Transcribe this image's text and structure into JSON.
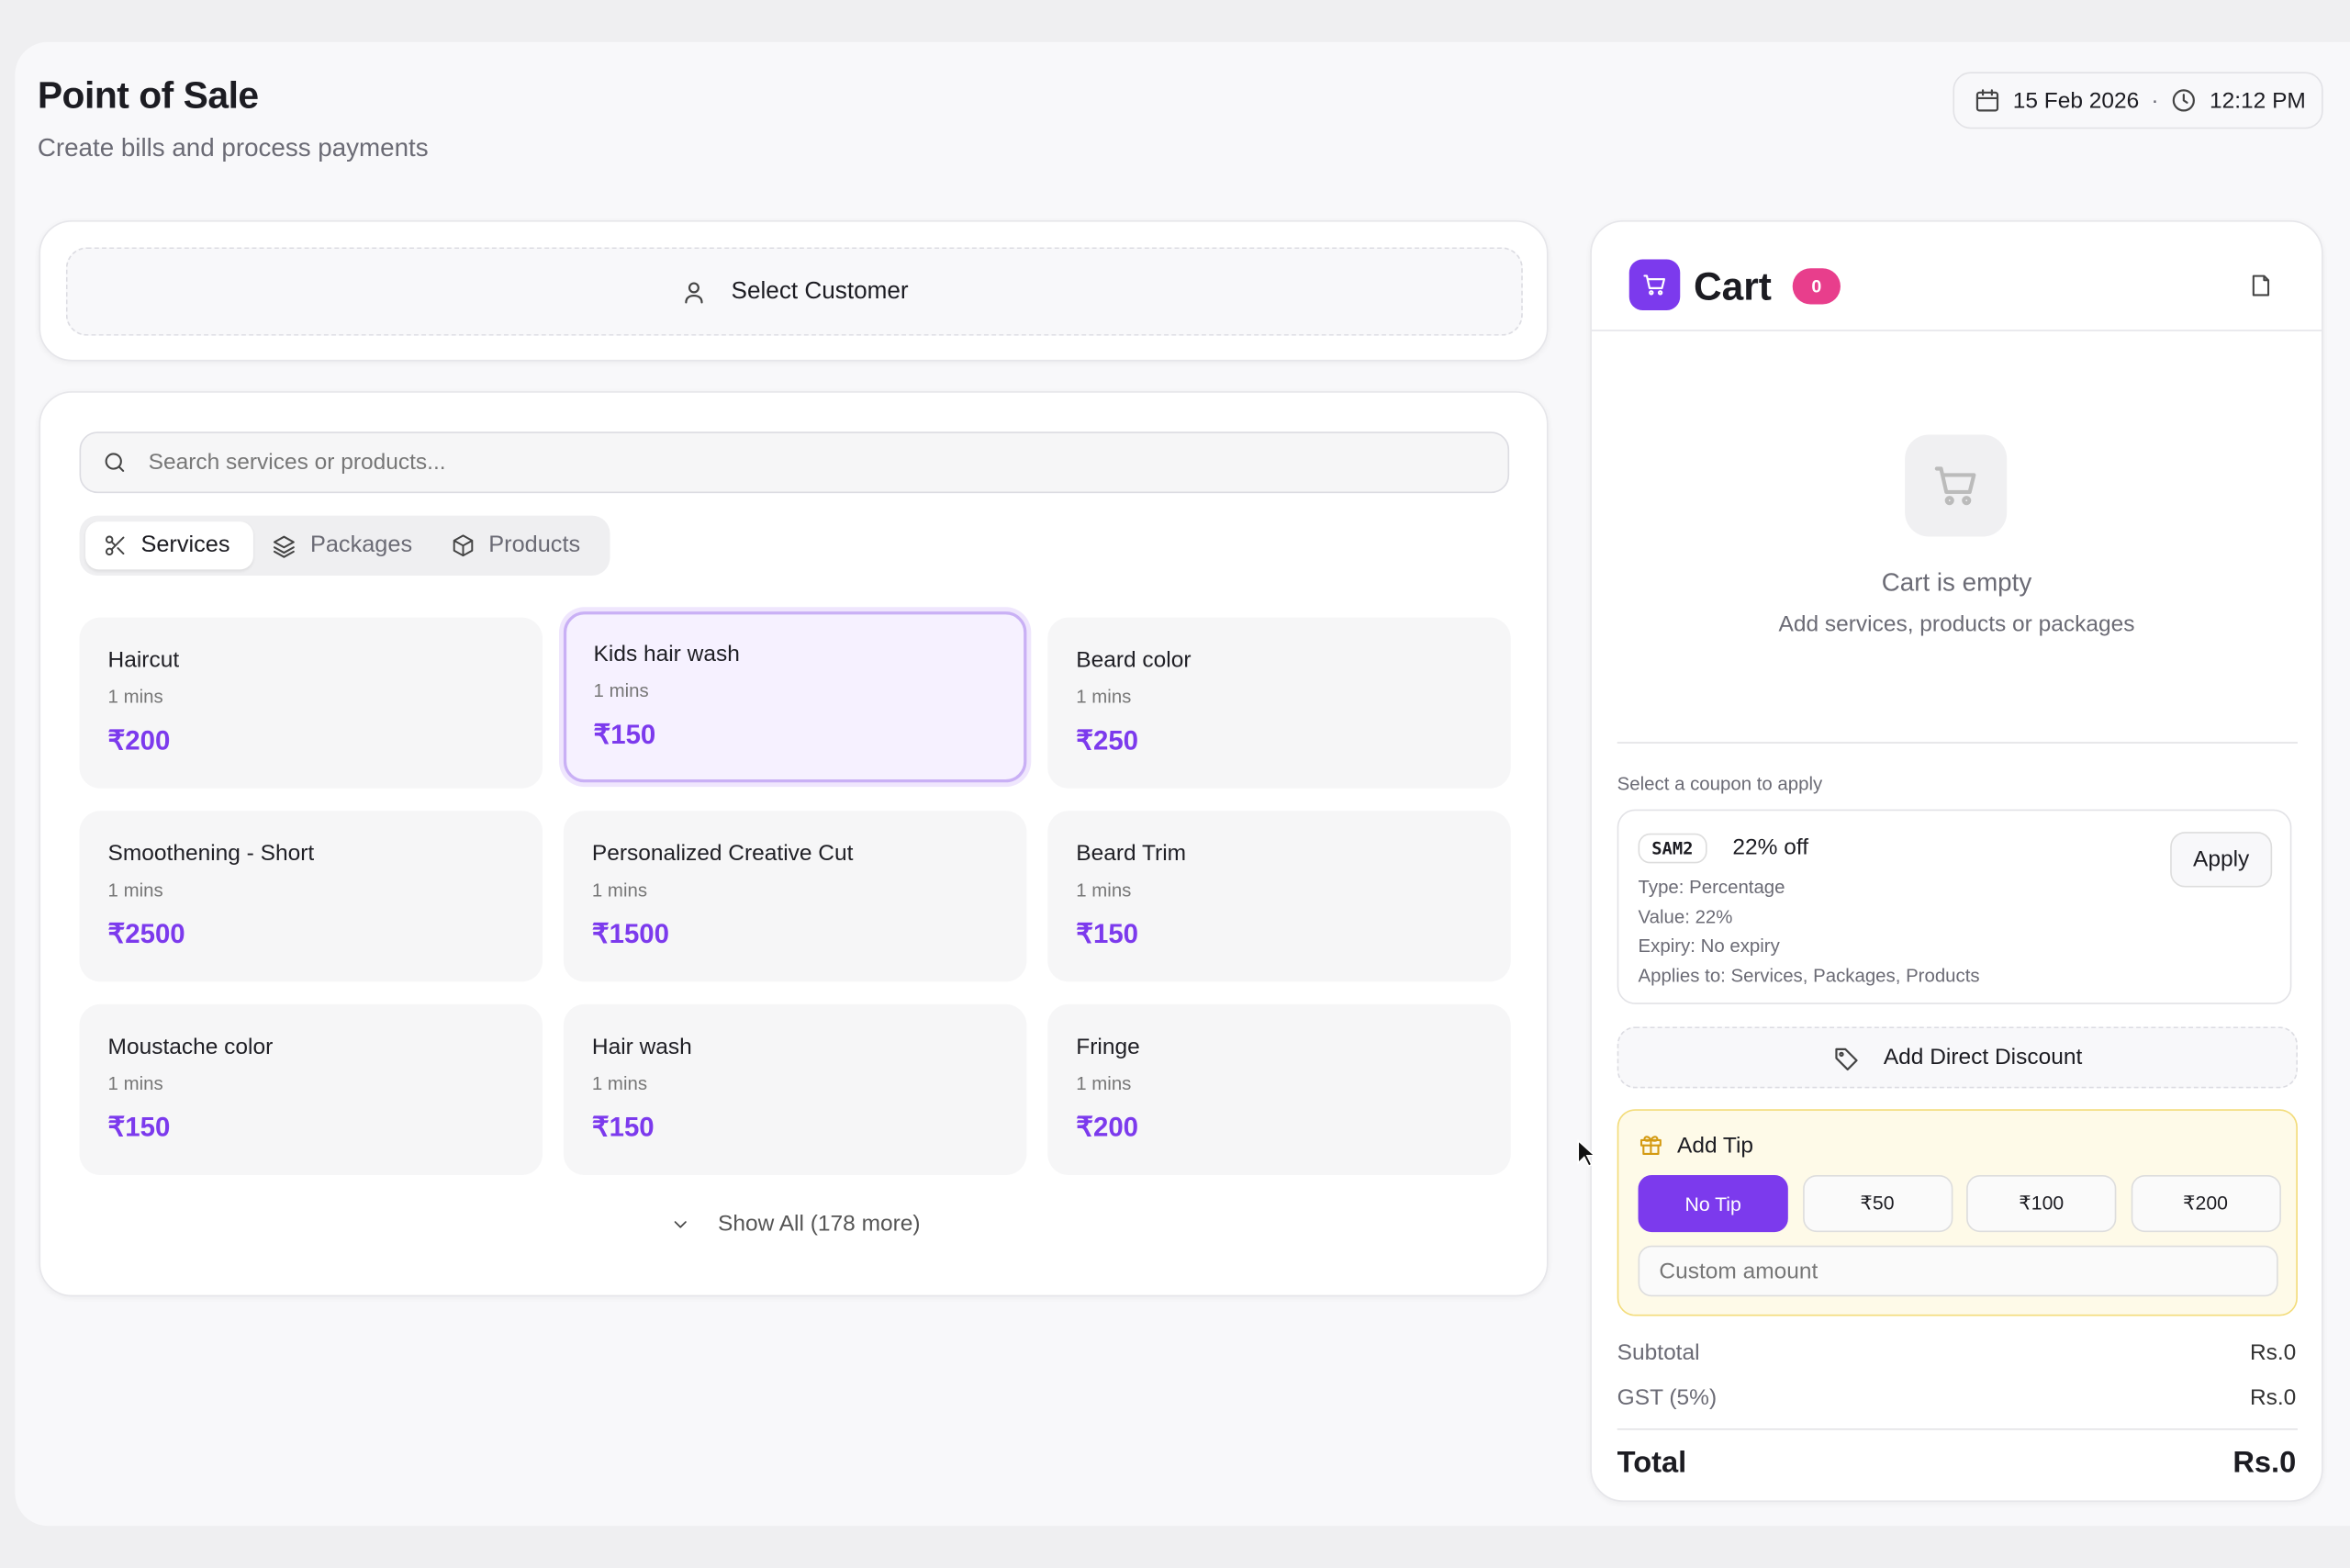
{
  "header": {
    "title": "Point of Sale",
    "subtitle": "Create bills and process payments",
    "date": "15 Feb 2026",
    "time": "12:12 PM"
  },
  "customer": {
    "label": "Select Customer"
  },
  "search": {
    "placeholder": "Search services or products..."
  },
  "tabs": [
    "Services",
    "Packages",
    "Products"
  ],
  "items": [
    {
      "name": "Haircut",
      "duration": "1 mins",
      "price": "₹200"
    },
    {
      "name": "Kids hair wash",
      "duration": "1 mins",
      "price": "₹150"
    },
    {
      "name": "Beard color",
      "duration": "1 mins",
      "price": "₹250"
    },
    {
      "name": "Smoothening - Short",
      "duration": "1 mins",
      "price": "₹2500"
    },
    {
      "name": "Personalized Creative Cut",
      "duration": "1 mins",
      "price": "₹1500"
    },
    {
      "name": "Beard Trim",
      "duration": "1 mins",
      "price": "₹150"
    },
    {
      "name": "Moustache color",
      "duration": "1 mins",
      "price": "₹150"
    },
    {
      "name": "Hair wash",
      "duration": "1 mins",
      "price": "₹150"
    },
    {
      "name": "Fringe",
      "duration": "1 mins",
      "price": "₹200"
    }
  ],
  "show_all": "Show All (178 more)",
  "cart": {
    "title": "Cart",
    "count": "0",
    "empty_title": "Cart is empty",
    "empty_subtitle": "Add services, products or packages"
  },
  "coupon": {
    "prompt": "Select a coupon to apply",
    "code": "SAM2",
    "discount": "22% off",
    "type": "Type: Percentage",
    "value": "Value: 22%",
    "expiry": "Expiry: No expiry",
    "applies": "Applies to: Services, Packages, Products",
    "apply": "Apply"
  },
  "direct_discount": "Add Direct Discount",
  "tip": {
    "title": "Add Tip",
    "options": [
      "No Tip",
      "₹50",
      "₹100",
      "₹200"
    ],
    "custom_placeholder": "Custom amount"
  },
  "summary": {
    "subtotal_label": "Subtotal",
    "subtotal": "Rs.0",
    "gst_label": "GST (5%)",
    "gst": "Rs.0",
    "total_label": "Total",
    "total": "Rs.0"
  }
}
